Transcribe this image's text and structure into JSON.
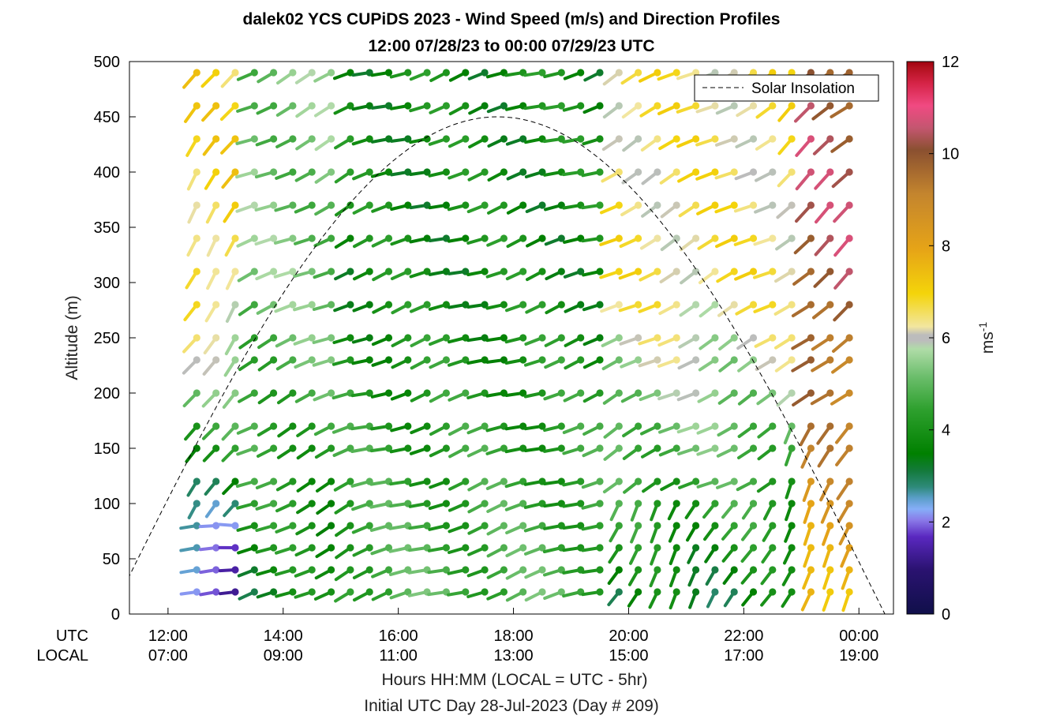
{
  "chart_data": {
    "type": "scatter",
    "title_line1": "dalek02 YCS CUPiDS 2023 - Wind Speed (m/s) and Direction Profiles",
    "title_line2": "12:00 07/28/23 to 00:00 07/29/23  UTC",
    "ylabel": "Altitude (m)",
    "xlabel": "Hours HH:MM  (LOCAL = UTC - 5hr)",
    "xlabel2": "Initial UTC Day 28-Jul-2023 (Day # 209)",
    "row_labels": {
      "utc": "UTC",
      "local": "LOCAL"
    },
    "xlim": [
      11.33,
      24.6
    ],
    "ylim": [
      0,
      500
    ],
    "x_ticks_utc": [
      "12:00",
      "14:00",
      "16:00",
      "18:00",
      "20:00",
      "22:00",
      "00:00"
    ],
    "x_ticks_local": [
      "07:00",
      "09:00",
      "11:00",
      "13:00",
      "15:00",
      "17:00",
      "19:00"
    ],
    "x_tick_hours": [
      12,
      14,
      16,
      18,
      20,
      22,
      24
    ],
    "y_ticks": [
      0,
      50,
      100,
      150,
      200,
      250,
      300,
      350,
      400,
      450,
      500
    ],
    "colorbar": {
      "label": "ms",
      "label_sup": "-1",
      "range": [
        0,
        12
      ],
      "ticks": [
        "0",
        "2",
        "4",
        "6",
        "8",
        "10",
        "12"
      ],
      "tick_values": [
        0,
        2,
        4,
        6,
        8,
        10,
        12
      ]
    },
    "legend": {
      "label": "Solar Insolation",
      "placement": "top-right"
    },
    "solar_insolation_curve": {
      "style": "dashed",
      "sunrise_x": 11.0,
      "sunset_x": 24.45,
      "peak_x": 17.45,
      "peak_y": 450
    },
    "profile_time_range_hours": [
      12.5,
      24.0
    ],
    "profile_interval_min": 20,
    "altitudes_m": [
      20,
      40,
      60,
      80,
      100,
      120,
      150,
      170,
      200,
      230,
      250,
      280,
      310,
      340,
      370,
      400,
      430,
      460,
      490
    ],
    "wind_field_description_key": {
      "speed_phases_ms": [
        {
          "until_hour": 13.2,
          "near_surface": 1.2,
          "aloft": 6.8
        },
        {
          "until_hour": 15.0,
          "near_surface": 3.5,
          "aloft": 5.2
        },
        {
          "until_hour": 19.5,
          "near_surface": 4.8,
          "aloft": 3.8
        },
        {
          "until_hour": 23.0,
          "near_surface": 3.2,
          "aloft": 6.5
        },
        {
          "until_hour": 24.0,
          "near_surface": 7.5,
          "aloft": 10.2
        }
      ]
    }
  }
}
